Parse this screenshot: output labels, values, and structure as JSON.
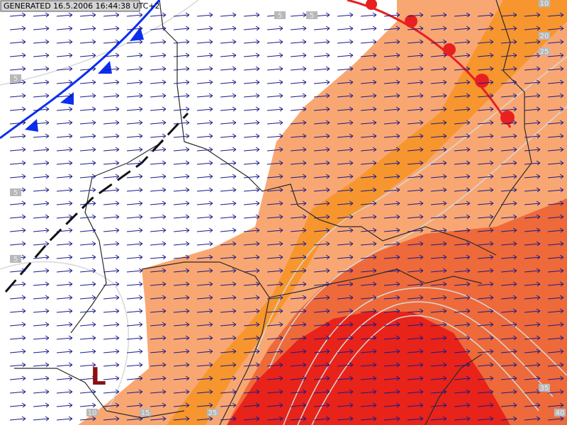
{
  "header": {
    "generated": "GENERATED 16.5.2006 16:44:38 UTC+2"
  },
  "pressure_label": "L",
  "contour_labels": [
    "10",
    "20",
    "25",
    "5",
    "5",
    "5",
    "5",
    "5",
    "10",
    "15",
    "25",
    "35",
    "40"
  ]
}
